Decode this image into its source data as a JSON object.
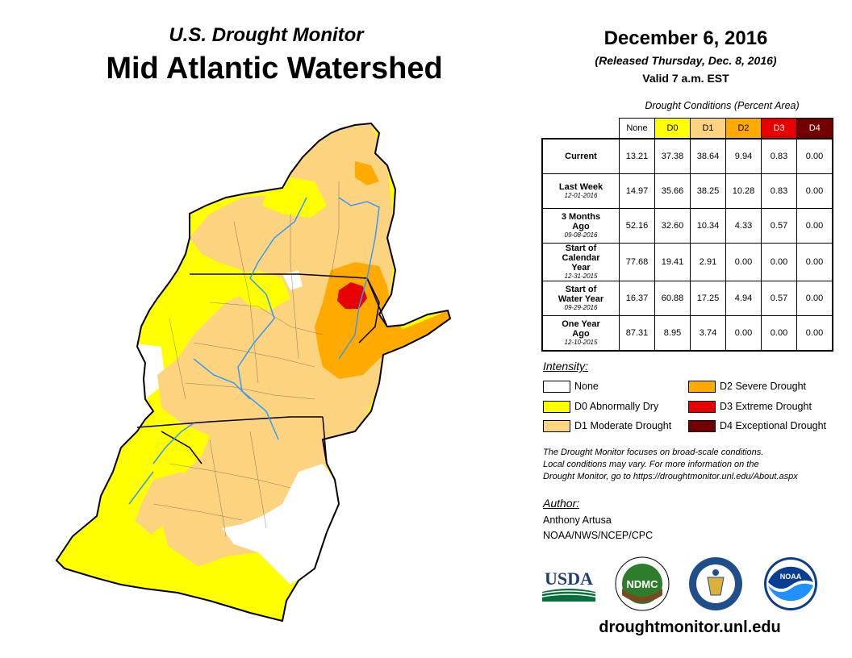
{
  "header": {
    "subtitle": "U.S. Drought Monitor",
    "title": "Mid Atlantic Watershed",
    "date": "December 6, 2016",
    "released": "(Released Thursday, Dec. 8, 2016)",
    "valid": "Valid 7 a.m. EST"
  },
  "table": {
    "caption": "Drought Conditions (Percent Area)",
    "columns": [
      {
        "label": "None",
        "color": "#ffffff",
        "text_color": "#000000"
      },
      {
        "label": "D0",
        "color": "#ffff00",
        "text_color": "#000000"
      },
      {
        "label": "D1",
        "color": "#fcd37f",
        "text_color": "#000000"
      },
      {
        "label": "D2",
        "color": "#ffaa00",
        "text_color": "#000000"
      },
      {
        "label": "D3",
        "color": "#e60000",
        "text_color": "#ffffff"
      },
      {
        "label": "D4",
        "color": "#730000",
        "text_color": "#ffffff"
      }
    ],
    "rows": [
      {
        "label": "Current",
        "date": "",
        "values": [
          "13.21",
          "37.38",
          "38.64",
          "9.94",
          "0.83",
          "0.00"
        ]
      },
      {
        "label": "Last Week",
        "date": "12-01-2016",
        "values": [
          "14.97",
          "35.66",
          "38.25",
          "10.28",
          "0.83",
          "0.00"
        ]
      },
      {
        "label": "3 Months Ago",
        "date": "09-08-2016",
        "values": [
          "52.16",
          "32.60",
          "10.34",
          "4.33",
          "0.57",
          "0.00"
        ]
      },
      {
        "label": "Start of Calendar Year",
        "date": "12-31-2015",
        "values": [
          "77.68",
          "19.41",
          "2.91",
          "0.00",
          "0.00",
          "0.00"
        ]
      },
      {
        "label": "Start of Water Year",
        "date": "09-29-2016",
        "values": [
          "16.37",
          "60.88",
          "17.25",
          "4.94",
          "0.57",
          "0.00"
        ]
      },
      {
        "label": "One Year Ago",
        "date": "12-10-2015",
        "values": [
          "87.31",
          "8.95",
          "3.74",
          "0.00",
          "0.00",
          "0.00"
        ]
      }
    ]
  },
  "legend": {
    "title": "Intensity:",
    "items": [
      {
        "label": "None",
        "color": "#ffffff"
      },
      {
        "label": "D0 Abnormally Dry",
        "color": "#ffff00"
      },
      {
        "label": "D1 Moderate Drought",
        "color": "#fcd37f"
      },
      {
        "label": "D2 Severe Drought",
        "color": "#ffaa00"
      },
      {
        "label": "D3 Extreme Drought",
        "color": "#e60000"
      },
      {
        "label": "D4 Exceptional Drought",
        "color": "#730000"
      }
    ]
  },
  "note": {
    "line1": "The Drought Monitor focuses on broad-scale conditions.",
    "line2": "Local conditions may vary. For more information on the",
    "line3": "Drought Monitor, go to https://droughtmonitor.unl.edu/About.aspx"
  },
  "author": {
    "title": "Author:",
    "name": "Anthony Artusa",
    "org": "NOAA/NWS/NCEP/CPC"
  },
  "logos": {
    "usda": "USDA",
    "ndmc": "NDMC",
    "noaa": "NOAA"
  },
  "footer": {
    "website": "droughtmonitor.unl.edu"
  },
  "colors": {
    "none": "#ffffff",
    "d0": "#ffff00",
    "d1": "#fcd37f",
    "d2": "#ffaa00",
    "d3": "#e60000",
    "d4": "#730000",
    "river": "#3399ff"
  }
}
